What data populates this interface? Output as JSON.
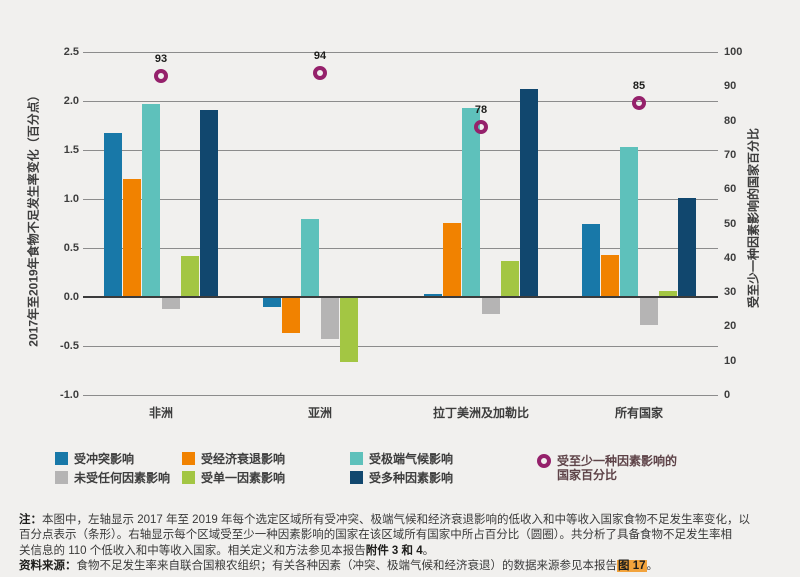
{
  "page": {
    "background": "#f1f0ee"
  },
  "chart_data": {
    "type": "bar",
    "categories": [
      "非洲",
      "亚洲",
      "拉丁美洲及加勒比",
      "所有国家"
    ],
    "series": [
      {
        "name": "受冲突影响",
        "color": "#1878a8",
        "values": [
          1.67,
          -0.1,
          0.03,
          0.74
        ]
      },
      {
        "name": "受经济衰退影响",
        "color": "#f18200",
        "values": [
          1.2,
          -0.37,
          0.76,
          0.43
        ]
      },
      {
        "name": "受极端气候影响",
        "color": "#5ec1bb",
        "values": [
          1.97,
          0.8,
          1.93,
          1.53
        ]
      },
      {
        "name": "未受任何因素影响",
        "color": "#b5b4b4",
        "values": [
          -0.12,
          -0.43,
          -0.17,
          -0.29
        ]
      },
      {
        "name": "受单一因素影响",
        "color": "#a3c643",
        "values": [
          0.42,
          -0.66,
          0.37,
          0.06
        ]
      },
      {
        "name": "受多种因素影响",
        "color": "#11476e",
        "values": [
          1.91,
          0.0,
          2.12,
          1.01
        ]
      }
    ],
    "circle_series": {
      "name": "受至少一种因素影响的国家百分比",
      "color": "#95216b",
      "values": [
        93,
        94,
        78,
        85
      ]
    },
    "left_axis": {
      "label": "2017年至2019年食物不足发生率变化（百分点）",
      "min": -1.0,
      "max": 2.5,
      "ticks": [
        "2.5",
        "2.0",
        "1.5",
        "1.0",
        "0.5",
        "0.0",
        "-0.5",
        "-1.0"
      ]
    },
    "right_axis": {
      "label": "受至少一种因素影响的国家百分比",
      "min": 0,
      "max": 100,
      "ticks": [
        "100",
        "90",
        "80",
        "70",
        "60",
        "50",
        "40",
        "30",
        "20",
        "10",
        "0"
      ]
    },
    "grid": "horizontal",
    "legend_position": "bottom"
  },
  "legend": {
    "circle_item_line1": "受至少一种因素影响的",
    "circle_item_line2": "国家百分比"
  },
  "notes": {
    "lines": [
      [
        {
          "t": "注：",
          "b": true
        },
        {
          "t": "本图中，左轴显示 2017 年至 2019 年每个选定区域所有受冲突、极端气候和经济衰退影响的低收入和中等收入国家食物不足发生率变化，以"
        }
      ],
      [
        {
          "t": "百分点表示（条形）。右轴显示每个区域受至少一种因素影响的国家在该区域所有国家中所占百分比（圆圈）。共分析了具备食物不足发生率相"
        }
      ],
      [
        {
          "t": "关信息的 110 个低收入和中等收入国家。相关定义和方法参见本报告"
        },
        {
          "t": "附件 3 和 4",
          "b": true
        },
        {
          "t": "。"
        }
      ],
      [
        {
          "t": "资料来源：",
          "b": true
        },
        {
          "t": "食物不足发生率来自联合国粮农组织；有关各种因素（冲突、极端气候和经济衰退）的数据来源参见本报告"
        },
        {
          "t": "图 17",
          "hl": true
        },
        {
          "t": "。"
        }
      ]
    ]
  }
}
